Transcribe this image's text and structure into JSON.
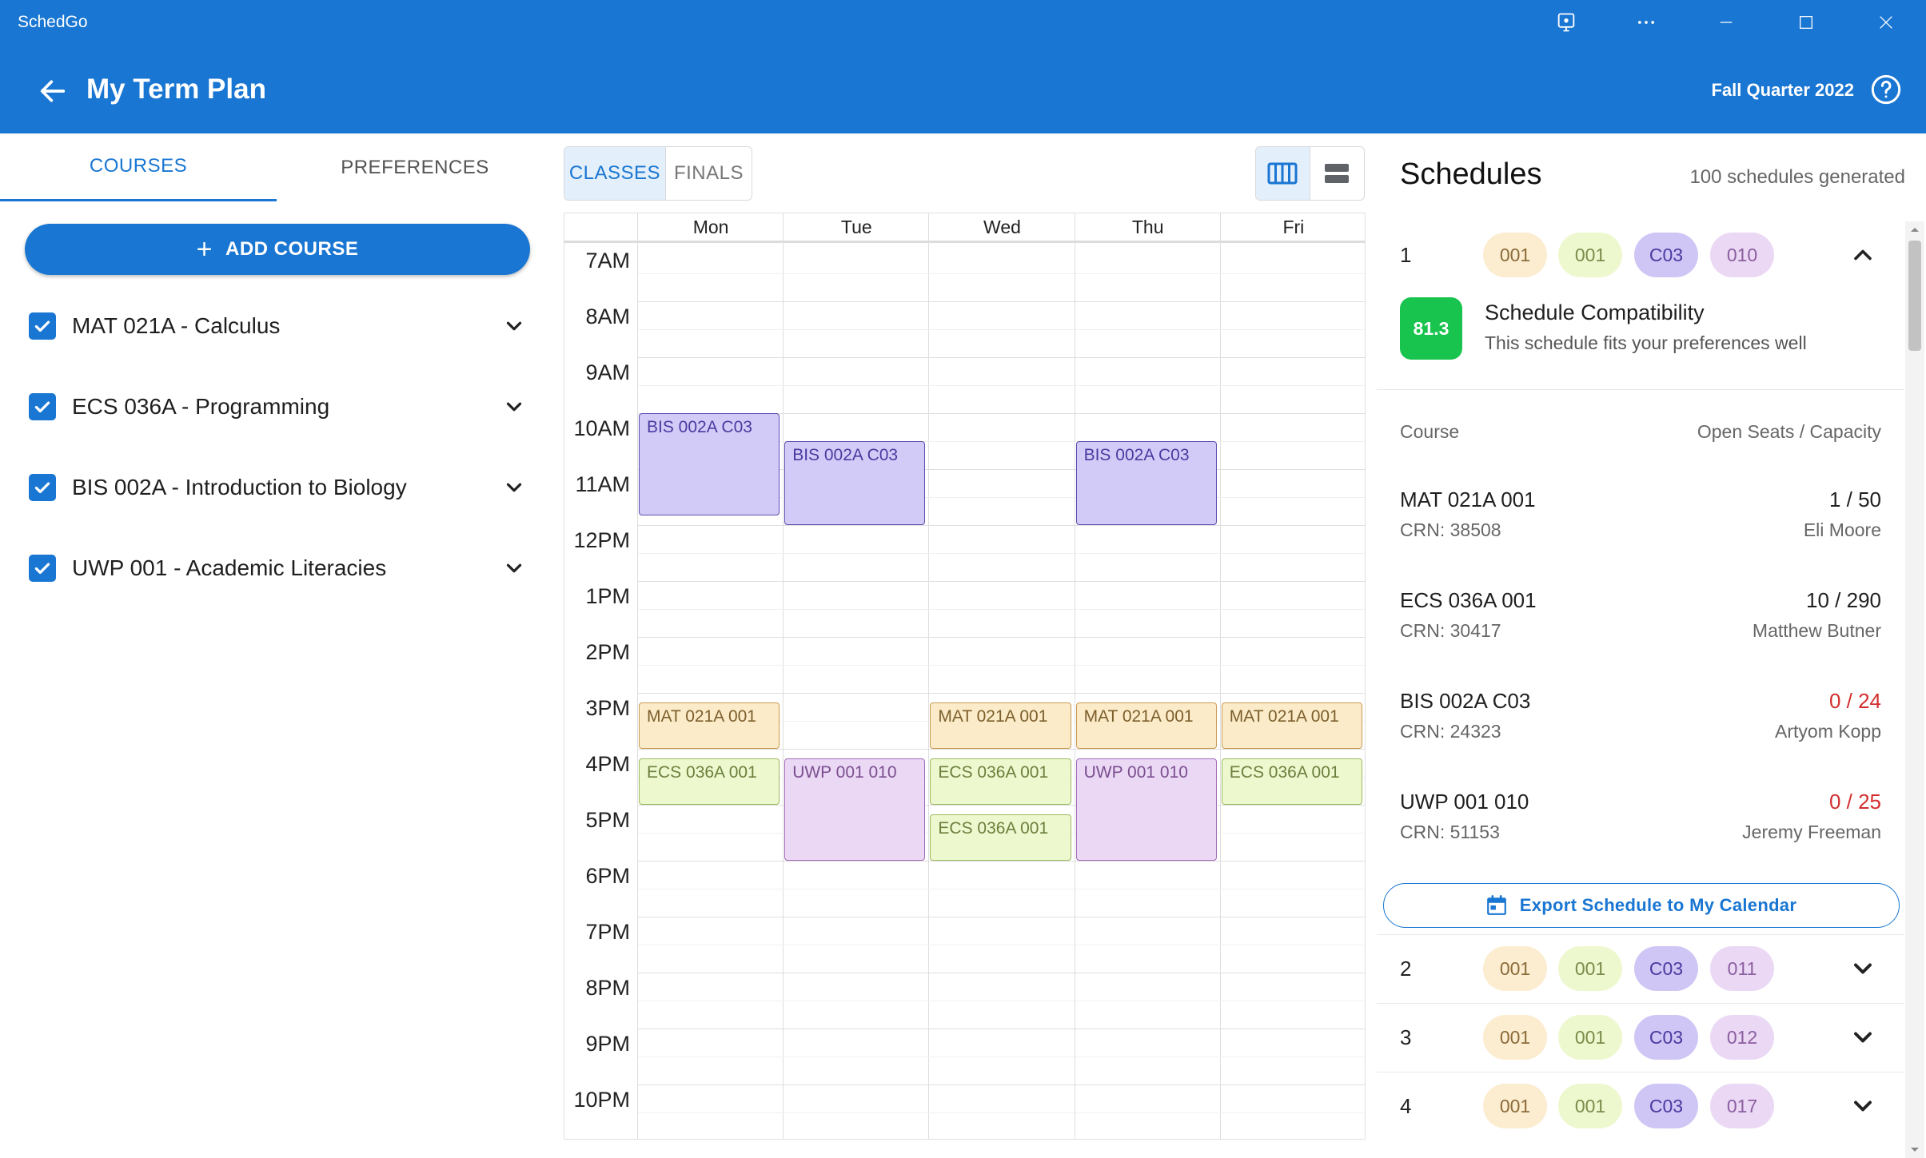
{
  "window": {
    "app_title": "SchedGo",
    "controls": [
      "cast-icon",
      "more-icon",
      "minimize-icon",
      "maximize-icon",
      "close-icon"
    ]
  },
  "header": {
    "title": "My Term Plan",
    "term": "Fall Quarter 2022"
  },
  "left_panel": {
    "tabs": [
      {
        "label": "COURSES",
        "active": true
      },
      {
        "label": "PREFERENCES",
        "active": false
      }
    ],
    "add_course_label": "ADD COURSE",
    "courses": [
      {
        "label": "MAT 021A - Calculus",
        "checked": true
      },
      {
        "label": "ECS 036A - Programming",
        "checked": true
      },
      {
        "label": "BIS 002A - Introduction to Biology",
        "checked": true
      },
      {
        "label": "UWP 001 - Academic Literacies",
        "checked": true
      }
    ]
  },
  "calendar": {
    "mode_tabs": [
      {
        "label": "CLASSES",
        "active": true
      },
      {
        "label": "FINALS",
        "active": false
      }
    ],
    "view_options": [
      {
        "icon": "week-columns-icon",
        "active": true
      },
      {
        "icon": "list-rows-icon",
        "active": false
      }
    ],
    "days": [
      "Mon",
      "Tue",
      "Wed",
      "Thu",
      "Fri"
    ],
    "hours": [
      "7AM",
      "8AM",
      "9AM",
      "10AM",
      "11AM",
      "12PM",
      "1PM",
      "2PM",
      "3PM",
      "4PM",
      "5PM",
      "6PM",
      "7PM",
      "8PM",
      "9PM",
      "10PM"
    ],
    "events": [
      {
        "label": "BIS 002A C03",
        "type": "bis",
        "day": 0,
        "start": 10.0,
        "end": 11.83
      },
      {
        "label": "BIS 002A C03",
        "type": "bis",
        "day": 1,
        "start": 10.5,
        "end": 12.0
      },
      {
        "label": "BIS 002A C03",
        "type": "bis",
        "day": 3,
        "start": 10.5,
        "end": 12.0
      },
      {
        "label": "MAT 021A 001",
        "type": "mat",
        "day": 0,
        "start": 15.17,
        "end": 16.0
      },
      {
        "label": "MAT 021A 001",
        "type": "mat",
        "day": 2,
        "start": 15.17,
        "end": 16.0
      },
      {
        "label": "MAT 021A 001",
        "type": "mat",
        "day": 3,
        "start": 15.17,
        "end": 16.0
      },
      {
        "label": "MAT 021A 001",
        "type": "mat",
        "day": 4,
        "start": 15.17,
        "end": 16.0
      },
      {
        "label": "ECS 036A 001",
        "type": "ecs",
        "day": 0,
        "start": 16.17,
        "end": 17.0
      },
      {
        "label": "ECS 036A 001",
        "type": "ecs",
        "day": 2,
        "start": 16.17,
        "end": 17.0
      },
      {
        "label": "ECS 036A 001",
        "type": "ecs",
        "day": 2,
        "start": 17.17,
        "end": 18.0
      },
      {
        "label": "ECS 036A 001",
        "type": "ecs",
        "day": 4,
        "start": 16.17,
        "end": 17.0
      },
      {
        "label": "UWP 001 010",
        "type": "uwp",
        "day": 1,
        "start": 16.17,
        "end": 18.0
      },
      {
        "label": "UWP 001 010",
        "type": "uwp",
        "day": 3,
        "start": 16.17,
        "end": 18.0
      }
    ]
  },
  "schedules": {
    "title": "Schedules",
    "count_text": "100 schedules generated",
    "expanded": {
      "number": "1",
      "chips": [
        "001",
        "001",
        "C03",
        "010"
      ],
      "score": "81.3",
      "compat_title": "Schedule Compatibility",
      "compat_sub": "This schedule fits your preferences well",
      "col_course": "Course",
      "col_seats": "Open Seats / Capacity",
      "courses": [
        {
          "name": "MAT 021A 001",
          "crn": "CRN: 38508",
          "seats": "1 / 50",
          "full": false,
          "instructor": "Eli Moore"
        },
        {
          "name": "ECS 036A 001",
          "crn": "CRN: 30417",
          "seats": "10 / 290",
          "full": false,
          "instructor": "Matthew Butner"
        },
        {
          "name": "BIS 002A C03",
          "crn": "CRN: 24323",
          "seats": "0 / 24",
          "full": true,
          "instructor": "Artyom Kopp"
        },
        {
          "name": "UWP 001 010",
          "crn": "CRN: 51153",
          "seats": "0 / 25",
          "full": true,
          "instructor": "Jeremy Freeman"
        }
      ],
      "export_label": "Export Schedule to My Calendar"
    },
    "collapsed": [
      {
        "number": "2",
        "chips": [
          "001",
          "001",
          "C03",
          "011"
        ]
      },
      {
        "number": "3",
        "chips": [
          "001",
          "001",
          "C03",
          "012"
        ]
      },
      {
        "number": "4",
        "chips": [
          "001",
          "001",
          "C03",
          "017"
        ]
      }
    ]
  }
}
